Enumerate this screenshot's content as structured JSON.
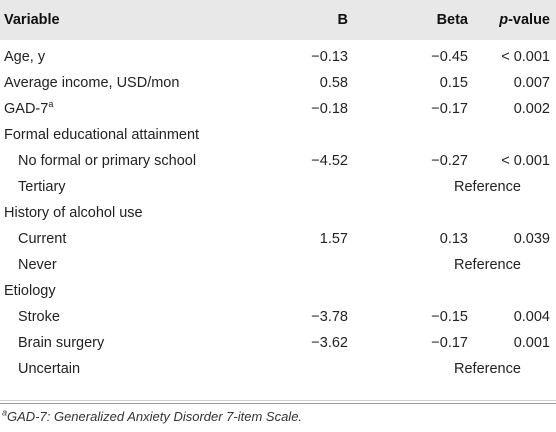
{
  "header": {
    "variable": "Variable",
    "b": "B",
    "beta": "Beta",
    "p_italic": "p",
    "p_rest": "-value"
  },
  "rows": [
    {
      "variable": "Age, y",
      "b": "−0.13",
      "beta": "−0.45",
      "p": "< 0.001"
    },
    {
      "variable": "Average income, USD/mon",
      "b": "0.58",
      "beta": "0.15",
      "p": "0.007"
    },
    {
      "variable": "GAD-7",
      "sup": "a",
      "b": "−0.18",
      "beta": "−0.17",
      "p": "0.002"
    },
    {
      "variable": "Formal educational attainment"
    },
    {
      "variable": "No formal or primary school",
      "b": "−4.52",
      "beta": "−0.27",
      "p": "< 0.001"
    },
    {
      "variable": "Tertiary",
      "p": "Reference"
    },
    {
      "variable": "History of alcohol use"
    },
    {
      "variable": "Current",
      "b": "1.57",
      "beta": "0.13",
      "p": "0.039"
    },
    {
      "variable": "Never",
      "p": "Reference"
    },
    {
      "variable": "Etiology"
    },
    {
      "variable": "Stroke",
      "b": "−3.78",
      "beta": "−0.15",
      "p": "0.004"
    },
    {
      "variable": "Brain surgery",
      "b": "−3.62",
      "beta": "−0.17",
      "p": "0.001"
    },
    {
      "variable": "Uncertain",
      "p": "Reference"
    }
  ],
  "footnote": {
    "sup": "a",
    "text": "GAD-7: Generalized Anxiety Disorder 7-item Scale."
  }
}
